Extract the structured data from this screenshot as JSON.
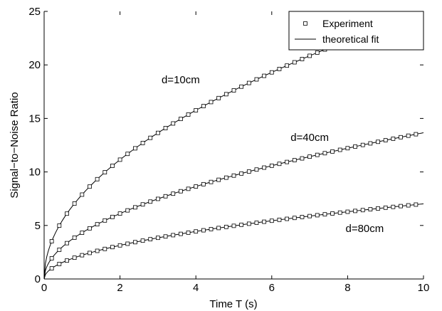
{
  "chart_data": {
    "type": "line",
    "title": "",
    "xlabel": "Time T (s)",
    "ylabel": "Signal−to−Noise Ratio",
    "xlim": [
      0,
      10
    ],
    "ylim": [
      0,
      25
    ],
    "xticks": [
      0,
      2,
      4,
      6,
      8,
      10
    ],
    "yticks": [
      0,
      5,
      10,
      15,
      20,
      25
    ],
    "grid": false,
    "legend": {
      "position": "top-right",
      "entries": [
        {
          "label": "Experiment",
          "marker": "square",
          "line": false
        },
        {
          "label": "theoretical fit",
          "marker": "none",
          "line": true
        }
      ]
    },
    "series": [
      {
        "curve_label": "d=10cm",
        "label_at": [
          3.6,
          18.3
        ],
        "model": {
          "a": 7.88,
          "b": 0.5
        },
        "experiment": {
          "x_start": 0.2,
          "x_step": 0.2,
          "count": 49
        }
      },
      {
        "curve_label": "d=40cm",
        "label_at": [
          7.0,
          12.9
        ],
        "model": {
          "a": 4.32,
          "b": 0.5
        },
        "experiment": {
          "x_start": 0.2,
          "x_step": 0.2,
          "count": 49
        }
      },
      {
        "curve_label": "d=80cm",
        "label_at": [
          8.45,
          4.4
        ],
        "model": {
          "a": 2.22,
          "b": 0.5
        },
        "experiment": {
          "x_start": 0.2,
          "x_step": 0.2,
          "count": 49
        }
      }
    ],
    "colors": {
      "line": "#000000",
      "marker_edge": "#000000",
      "marker_face": "#ffffff",
      "axes": "#000000"
    }
  }
}
